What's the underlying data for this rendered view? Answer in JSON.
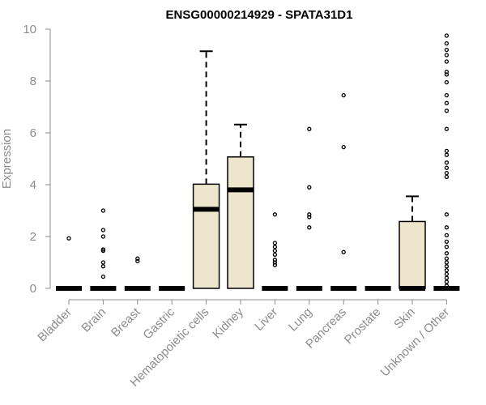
{
  "chart_data": {
    "type": "boxplot",
    "title": "ENSG00000214929 - SPATA31D1",
    "xlabel": "",
    "ylabel": "Expression",
    "ylim": [
      0,
      10
    ],
    "yticks": [
      0,
      2,
      4,
      6,
      8,
      10
    ],
    "colors": {
      "box_fill": "#ede6cc",
      "stroke": "#000000",
      "axis": "#8c8c8c"
    },
    "categories": [
      "Bladder",
      "Brain",
      "Breast",
      "Gastric",
      "Hematopoietic cells",
      "Kidney",
      "Liver",
      "Lung",
      "Pancreas",
      "Prostate",
      "Skin",
      "Unknown / Other"
    ],
    "boxes": [
      {
        "category": "Bladder",
        "q1": 0,
        "median": 0,
        "q3": 0,
        "whisker_low": 0,
        "whisker_high": 0,
        "outliers": [
          1.93
        ]
      },
      {
        "category": "Brain",
        "q1": 0,
        "median": 0,
        "q3": 0,
        "whisker_low": 0,
        "whisker_high": 0,
        "outliers": [
          0.45,
          0.85,
          1.0,
          1.45,
          1.5,
          2.0,
          2.25,
          3.0
        ]
      },
      {
        "category": "Breast",
        "q1": 0,
        "median": 0,
        "q3": 0,
        "whisker_low": 0,
        "whisker_high": 0,
        "outliers": [
          1.05,
          1.15
        ]
      },
      {
        "category": "Gastric",
        "q1": 0,
        "median": 0,
        "q3": 0,
        "whisker_low": 0,
        "whisker_high": 0,
        "outliers": []
      },
      {
        "category": "Hematopoietic cells",
        "q1": 0,
        "median": 3.05,
        "q3": 4.02,
        "whisker_low": 0,
        "whisker_high": 9.15,
        "outliers": []
      },
      {
        "category": "Kidney",
        "q1": 0,
        "median": 3.8,
        "q3": 5.07,
        "whisker_low": 0,
        "whisker_high": 6.32,
        "outliers": []
      },
      {
        "category": "Liver",
        "q1": 0,
        "median": 0,
        "q3": 0,
        "whisker_low": 0,
        "whisker_high": 0,
        "outliers": [
          0.9,
          1.0,
          1.1,
          1.3,
          1.45,
          1.6,
          1.75,
          2.85
        ]
      },
      {
        "category": "Lung",
        "q1": 0,
        "median": 0,
        "q3": 0,
        "whisker_low": 0,
        "whisker_high": 0,
        "outliers": [
          2.35,
          2.75,
          2.85,
          3.9,
          6.15
        ]
      },
      {
        "category": "Pancreas",
        "q1": 0,
        "median": 0,
        "q3": 0,
        "whisker_low": 0,
        "whisker_high": 0,
        "outliers": [
          1.4,
          5.45,
          7.45
        ]
      },
      {
        "category": "Prostate",
        "q1": 0,
        "median": 0,
        "q3": 0,
        "whisker_low": 0,
        "whisker_high": 0,
        "outliers": []
      },
      {
        "category": "Skin",
        "q1": 0,
        "median": 0,
        "q3": 2.58,
        "whisker_low": 0,
        "whisker_high": 3.55,
        "outliers": []
      },
      {
        "category": "Unknown / Other",
        "q1": 0,
        "median": 0,
        "q3": 0,
        "whisker_low": 0,
        "whisker_high": 0,
        "outliers": [
          0.1,
          0.25,
          0.4,
          0.55,
          0.7,
          0.85,
          1.0,
          1.15,
          1.35,
          1.6,
          1.8,
          2.05,
          2.35,
          2.85,
          4.3,
          4.45,
          4.65,
          4.85,
          5.15,
          5.3,
          6.15,
          6.85,
          7.15,
          7.45,
          7.95,
          8.25,
          8.35,
          8.75,
          9.0,
          9.2,
          9.45,
          9.75
        ]
      }
    ]
  }
}
